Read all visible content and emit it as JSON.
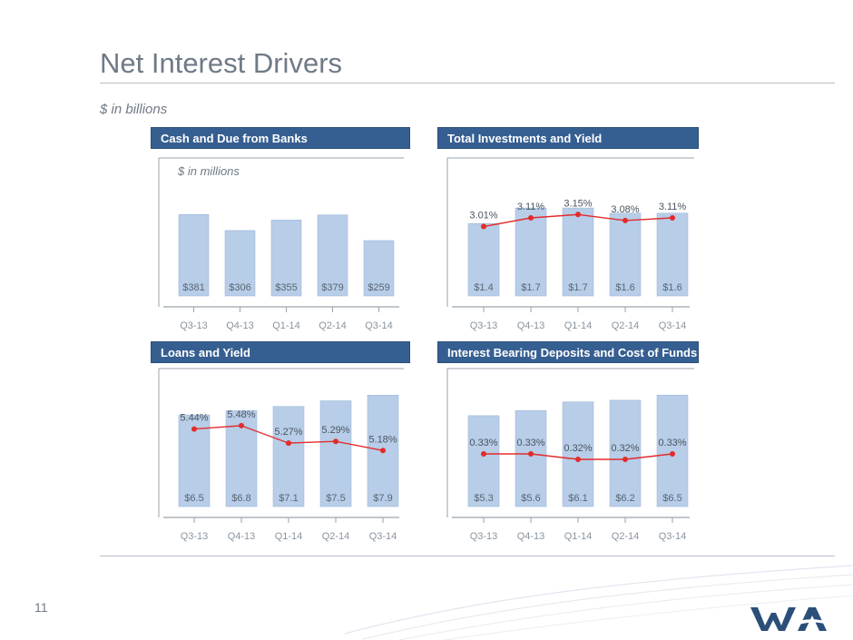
{
  "page": {
    "title": "Net Interest Drivers",
    "subtitle": "$ in billions",
    "page_number": "11"
  },
  "colors": {
    "bar": "#b7cde8",
    "bar_stroke": "#9fb9da",
    "line": "#e32b2b",
    "header_bg": "#365f91",
    "text": "#6f7a86"
  },
  "panels": [
    {
      "header": "Cash and Due from Banks",
      "note": "$ in millions"
    },
    {
      "header": "Total Investments and Yield",
      "note": ""
    },
    {
      "header": "Loans and Yield",
      "note": ""
    },
    {
      "header": "Interest Bearing Deposits and Cost of Funds",
      "note": ""
    }
  ],
  "chart_data": [
    {
      "type": "bar",
      "title": "Cash and Due from Banks",
      "categories": [
        "Q3-13",
        "Q4-13",
        "Q1-14",
        "Q2-14",
        "Q3-14"
      ],
      "series": [
        {
          "values": [
            381,
            306,
            355,
            379,
            259
          ],
          "labels": [
            "$381",
            "$306",
            "$355",
            "$379",
            "$259"
          ]
        }
      ],
      "ylim": [
        0,
        450
      ]
    },
    {
      "type": "bar",
      "title": "Total Investments and Yield",
      "categories": [
        "Q3-13",
        "Q4-13",
        "Q1-14",
        "Q2-14",
        "Q3-14"
      ],
      "series": [
        {
          "values": [
            1.4,
            1.7,
            1.7,
            1.6,
            1.6
          ],
          "labels": [
            "$1.4",
            "$1.7",
            "$1.7",
            "$1.6",
            "$1.6"
          ]
        }
      ],
      "line": {
        "values": [
          3.01,
          3.11,
          3.15,
          3.08,
          3.11
        ],
        "labels": [
          "3.01%",
          "3.11%",
          "3.15%",
          "3.08%",
          "3.11%"
        ],
        "ylim": [
          2.5,
          3.3
        ]
      },
      "ylim": [
        0,
        2.0
      ]
    },
    {
      "type": "bar",
      "title": "Loans and Yield",
      "categories": [
        "Q3-13",
        "Q4-13",
        "Q1-14",
        "Q2-14",
        "Q3-14"
      ],
      "series": [
        {
          "values": [
            6.5,
            6.8,
            7.1,
            7.5,
            7.9
          ],
          "labels": [
            "$6.5",
            "$6.8",
            "$7.1",
            "$7.5",
            "$7.9"
          ]
        }
      ],
      "line": {
        "values": [
          5.44,
          5.48,
          5.27,
          5.29,
          5.18
        ],
        "labels": [
          "5.44%",
          "5.48%",
          "5.27%",
          "5.29%",
          "5.18%"
        ],
        "ylim": [
          4.7,
          5.6
        ]
      },
      "ylim": [
        0,
        8.5
      ]
    },
    {
      "type": "bar",
      "title": "Interest Bearing Deposits and Cost of Funds",
      "categories": [
        "Q3-13",
        "Q4-13",
        "Q1-14",
        "Q2-14",
        "Q3-14"
      ],
      "series": [
        {
          "values": [
            5.3,
            5.6,
            6.1,
            6.2,
            6.5
          ],
          "labels": [
            "$5.3",
            "$5.6",
            "$6.1",
            "$6.2",
            "$6.5"
          ]
        }
      ],
      "line": {
        "values": [
          0.33,
          0.33,
          0.32,
          0.32,
          0.33
        ],
        "labels": [
          "0.33%",
          "0.33%",
          "0.32%",
          "0.32%",
          "0.33%"
        ],
        "ylim": [
          0.28,
          0.36
        ]
      },
      "ylim": [
        0,
        7.2
      ]
    }
  ]
}
